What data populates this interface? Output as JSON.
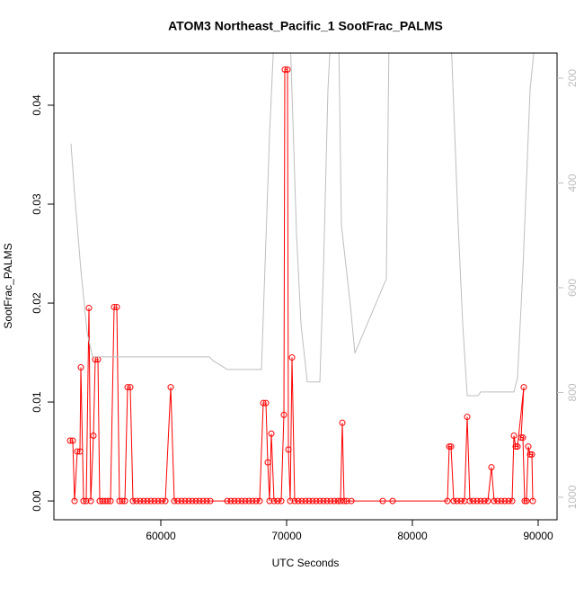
{
  "chart_data": {
    "type": "line-scatter",
    "title": "ATOM3 Northeast_Pacific_1 SootFrac_PALMS",
    "x_label": "UTC Seconds",
    "y_label": "SootFrac_PALMS",
    "xlim": [
      51500,
      91500
    ],
    "xticks": [
      60000,
      70000,
      80000,
      90000
    ],
    "ylim": [
      -0.0019,
      0.04527
    ],
    "yticks": [
      {
        "value": 0,
        "label": "0.00"
      },
      0.01,
      0.02,
      0.03,
      0.04
    ],
    "y2lim": [
      1043,
      152
    ],
    "y2ticks": [
      200,
      400,
      600,
      800,
      1000
    ],
    "series": [
      {
        "color": "#ff0000",
        "markers": true,
        "x": [
          52786,
          53000,
          53143,
          53357,
          53571,
          53643,
          53857,
          54071,
          54286,
          54429,
          54643,
          54786,
          55000,
          55143,
          55357,
          55571,
          55786,
          56000,
          56286,
          56500,
          56714,
          56929,
          57143,
          57357,
          57571,
          57786,
          58071,
          58357,
          58643,
          58929,
          59214,
          59500,
          59786,
          60071,
          60357,
          60786,
          61071,
          61357,
          61643,
          61929,
          62214,
          62500,
          62786,
          63071,
          63357,
          63643,
          63929,
          65286,
          65571,
          65857,
          66143,
          66429,
          66714,
          67000,
          67286,
          67571,
          67857,
          68143,
          68357,
          68500,
          68643,
          68786,
          69000,
          69286,
          69571,
          69786,
          69857,
          70071,
          70143,
          70286,
          70429,
          70643,
          70929,
          71214,
          71500,
          71786,
          72071,
          72357,
          72643,
          72929,
          73214,
          73500,
          73786,
          74071,
          74286,
          74429,
          74571,
          74786,
          75143,
          77643,
          78429,
          82786,
          82929,
          83071,
          83286,
          83571,
          83857,
          84143,
          84357,
          84571,
          84857,
          85143,
          85429,
          85714,
          86000,
          86286,
          86500,
          86786,
          87071,
          87357,
          87643,
          87929,
          88071,
          88214,
          88357,
          88857,
          88643,
          88786,
          88929,
          89071,
          89214,
          89357,
          89500,
          89571
        ],
        "values": [
          0.0061,
          0.0061,
          0,
          0.005,
          0.005,
          0.0135,
          0,
          0,
          0.0195,
          0,
          0.0066,
          0.0143,
          0.0143,
          0,
          0,
          0,
          0,
          0,
          0.0196,
          0.0196,
          0,
          0,
          0,
          0.0115,
          0.0115,
          0,
          0,
          0,
          0,
          0,
          0,
          0,
          0,
          0,
          0,
          0.0115,
          0,
          0,
          0,
          0,
          0,
          0,
          0,
          0,
          0,
          0,
          0,
          0,
          0,
          0,
          0,
          0,
          0,
          0,
          0,
          0,
          0,
          0.0099,
          0.0099,
          0.0039,
          0,
          0.0068,
          0,
          0,
          0,
          0.0087,
          0.0436,
          0.0436,
          0.0052,
          0,
          0.0145,
          0,
          0,
          0,
          0,
          0,
          0,
          0,
          0,
          0,
          0,
          0,
          0,
          0,
          0,
          0.0079,
          0,
          0,
          0,
          0,
          0,
          0,
          0.0055,
          0.0055,
          0,
          0,
          0,
          0,
          0.0085,
          0,
          0,
          0,
          0,
          0,
          0,
          0.0034,
          0,
          0,
          0,
          0,
          0,
          0,
          0.0066,
          0.0055,
          0.0055,
          0.0115,
          0.0064,
          0.0064,
          0,
          0,
          0.0055,
          0.0047,
          0.0047,
          0
        ]
      },
      {
        "color": "#bebebe",
        "axis": "y2",
        "markers": false,
        "x": [
          52857,
          53143,
          53643,
          54143,
          54571,
          63857,
          64143,
          65286,
          68000,
          68643,
          69000,
          70286,
          70786,
          71143,
          71643,
          72643,
          72929,
          73286,
          73500,
          74143,
          74357,
          75071,
          75429,
          77929,
          78143,
          83071,
          83643,
          84000,
          84357,
          85214,
          85429,
          88071,
          88357,
          88786,
          89357,
          89786
        ],
        "values": [
          325,
          420,
          566,
          686,
          732,
          732,
          739,
          756,
          756,
          308,
          120,
          120,
          497,
          669,
          780,
          780,
          566,
          222,
          120,
          120,
          480,
          634,
          725,
          583,
          120,
          120,
          480,
          669,
          806,
          806,
          799,
          799,
          772,
          566,
          222,
          120
        ]
      }
    ]
  }
}
